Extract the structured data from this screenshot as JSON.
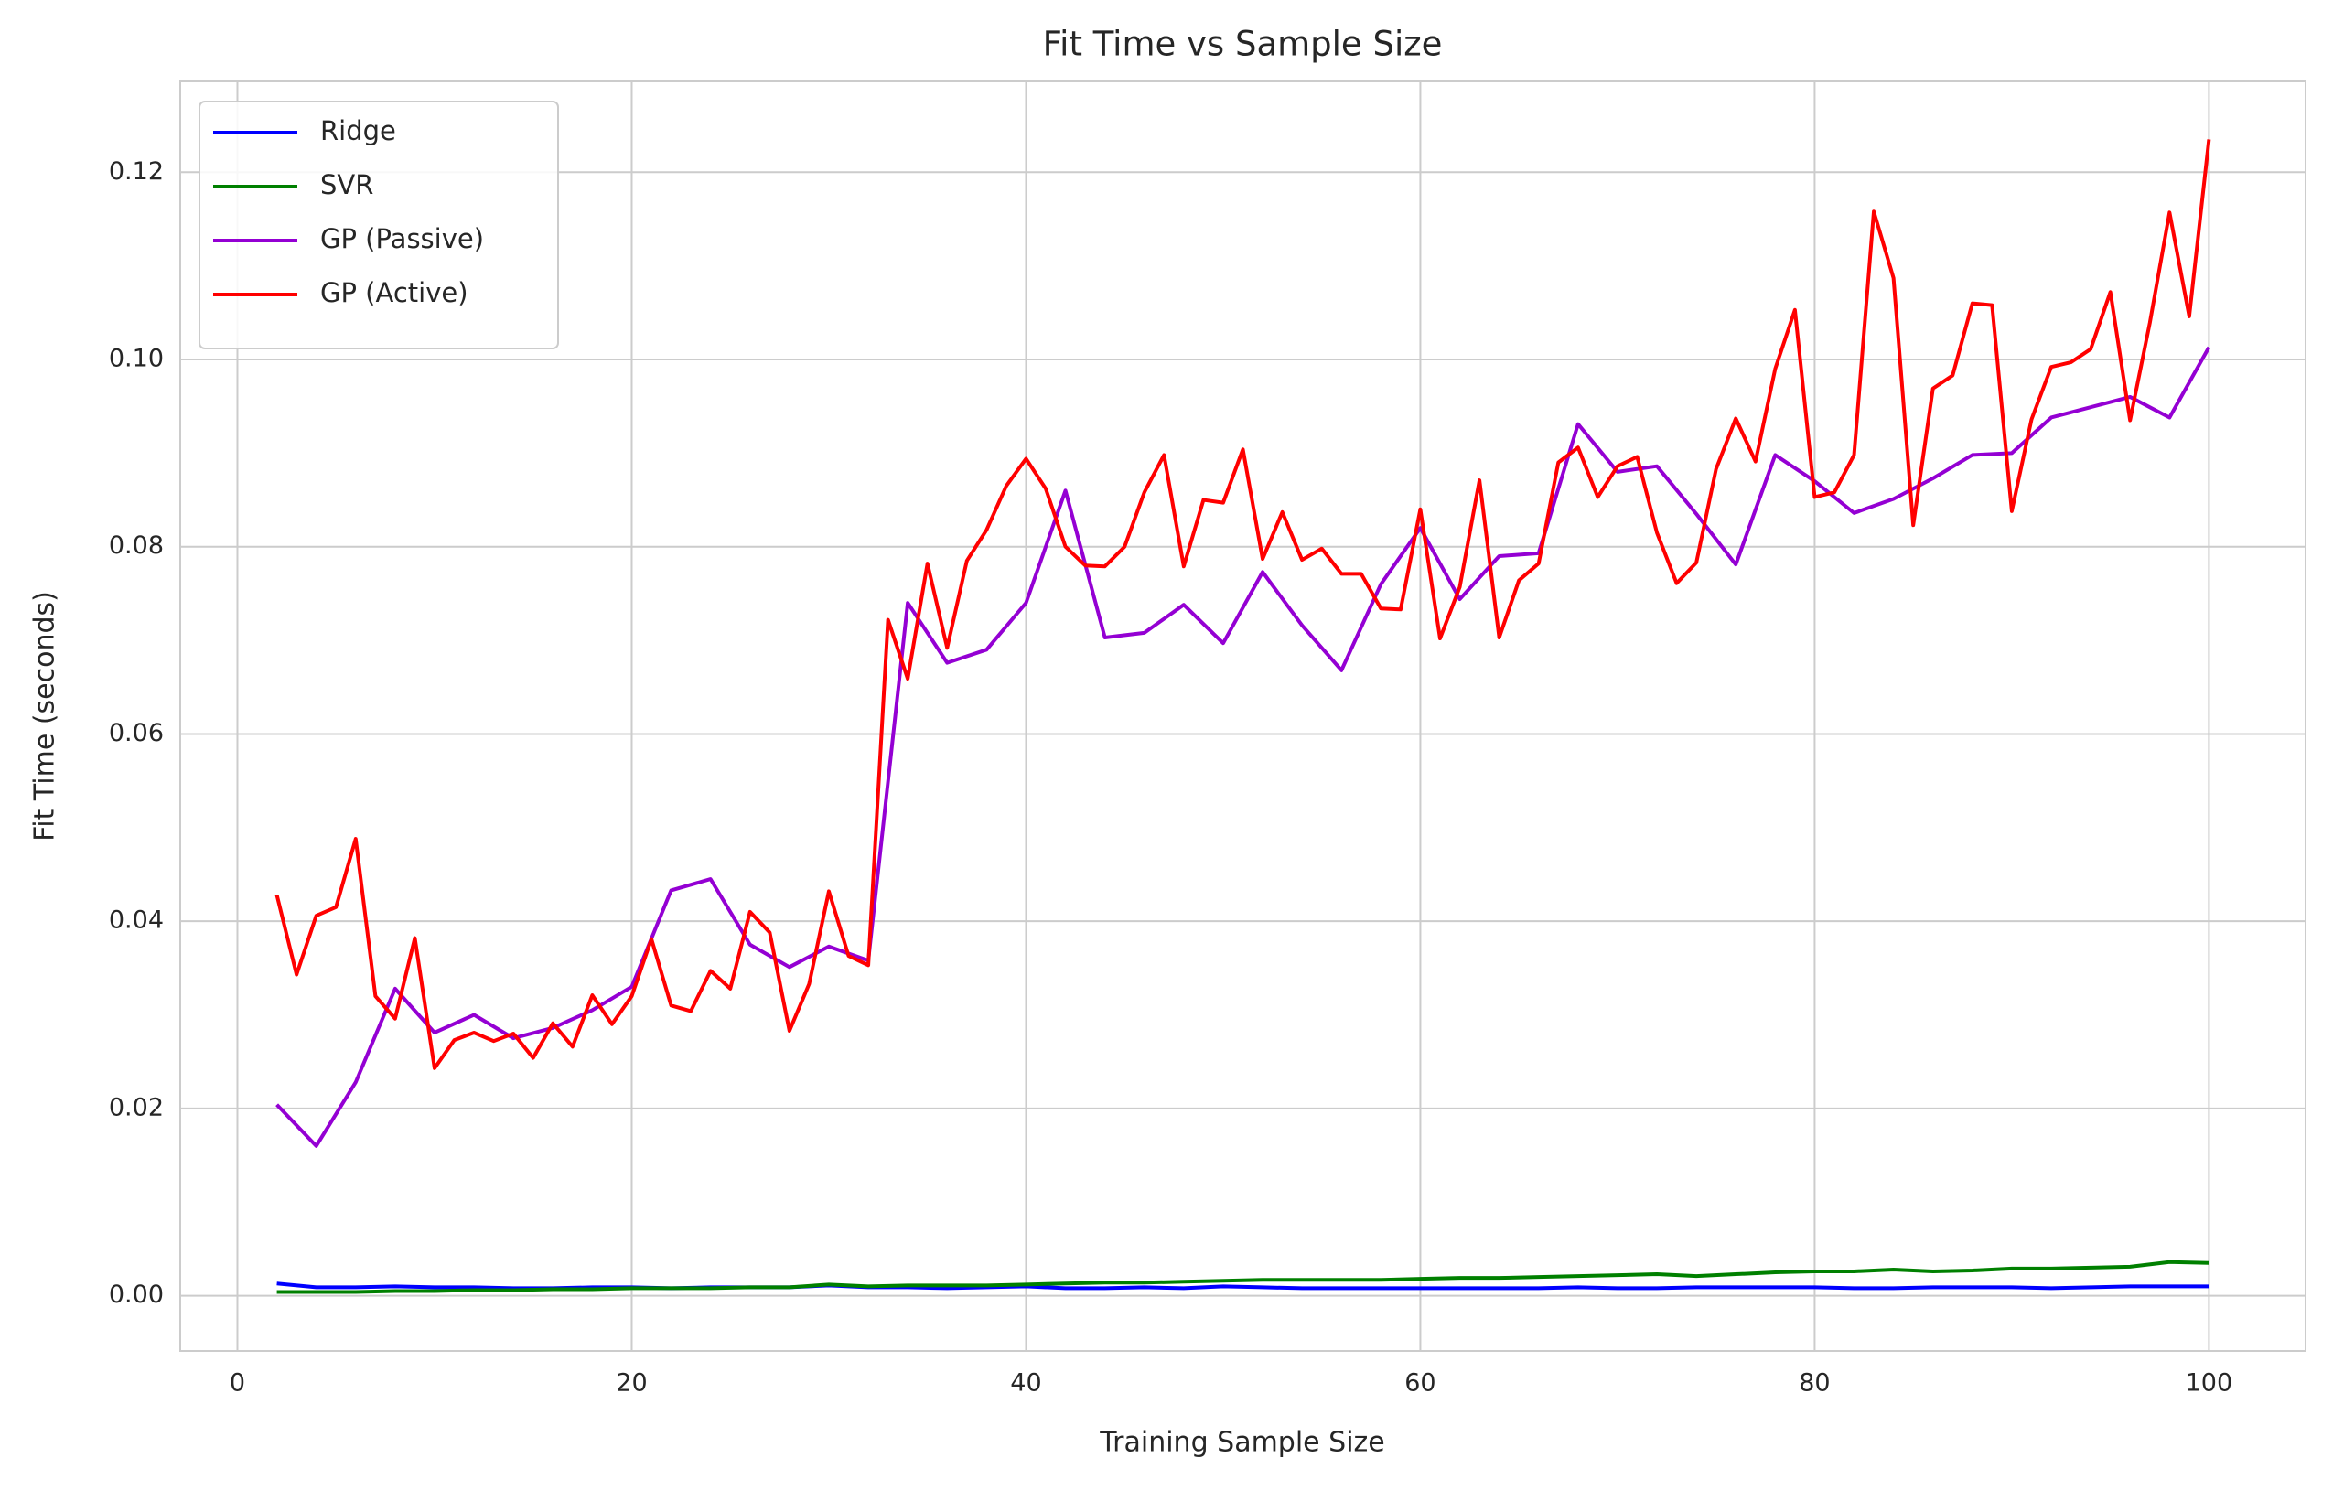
{
  "chart_data": {
    "type": "line",
    "title": "Fit Time vs Sample Size",
    "x_label": "Training Sample Size",
    "y_label": "Fit Time (seconds)",
    "xlim": [
      -2.9,
      104.9
    ],
    "ylim": [
      -0.0059,
      0.1297
    ],
    "xticks": [
      0,
      20,
      40,
      60,
      80,
      100
    ],
    "yticks": [
      {
        "value": 0,
        "label": "0.00"
      },
      {
        "value": 0.02,
        "label": "0.02"
      },
      {
        "value": 0.04,
        "label": "0.04"
      },
      {
        "value": 0.06,
        "label": "0.06"
      },
      {
        "value": 0.08,
        "label": "0.08"
      },
      {
        "value": 0.1,
        "label": "0.10"
      },
      {
        "value": 0.12,
        "label": "0.12"
      }
    ],
    "grid": true,
    "legend": "upper left",
    "series": [
      {
        "name": "Ridge",
        "color": "#0000ff",
        "x": [
          2,
          4,
          6,
          8,
          10,
          12,
          14,
          16,
          18,
          20,
          22,
          24,
          26,
          28,
          30,
          32,
          34,
          36,
          38,
          40,
          42,
          44,
          46,
          48,
          50,
          52,
          54,
          56,
          58,
          60,
          62,
          64,
          66,
          68,
          70,
          72,
          74,
          76,
          78,
          80,
          82,
          84,
          86,
          88,
          90,
          92,
          94,
          96,
          98,
          100
        ],
        "values": [
          0.0013,
          0.0009,
          0.0009,
          0.001,
          0.0009,
          0.0009,
          0.0008,
          0.0008,
          0.0009,
          0.0009,
          0.0008,
          0.0009,
          0.0009,
          0.0009,
          0.0011,
          0.0009,
          0.0009,
          0.0008,
          0.0009,
          0.001,
          0.0008,
          0.0008,
          0.0009,
          0.0008,
          0.001,
          0.0009,
          0.0008,
          0.0008,
          0.0008,
          0.0008,
          0.0008,
          0.0008,
          0.0008,
          0.0009,
          0.0008,
          0.0008,
          0.0009,
          0.0009,
          0.0009,
          0.0009,
          0.0008,
          0.0008,
          0.0009,
          0.0009,
          0.0009,
          0.0008,
          0.0009,
          0.001,
          0.001,
          0.001
        ]
      },
      {
        "name": "SVR",
        "color": "#008000",
        "x": [
          2,
          4,
          6,
          8,
          10,
          12,
          14,
          16,
          18,
          20,
          22,
          24,
          26,
          28,
          30,
          32,
          34,
          36,
          38,
          40,
          42,
          44,
          46,
          48,
          50,
          52,
          54,
          56,
          58,
          60,
          62,
          64,
          66,
          68,
          70,
          72,
          74,
          76,
          78,
          80,
          82,
          84,
          86,
          88,
          90,
          92,
          94,
          96,
          98,
          100
        ],
        "values": [
          0.0004,
          0.0004,
          0.0004,
          0.0005,
          0.0005,
          0.0006,
          0.0006,
          0.0007,
          0.0007,
          0.0008,
          0.0008,
          0.0008,
          0.0009,
          0.0009,
          0.0012,
          0.001,
          0.0011,
          0.0011,
          0.0011,
          0.0012,
          0.0013,
          0.0014,
          0.0014,
          0.0015,
          0.0016,
          0.0017,
          0.0017,
          0.0017,
          0.0017,
          0.0018,
          0.0019,
          0.0019,
          0.002,
          0.0021,
          0.0022,
          0.0023,
          0.0021,
          0.0023,
          0.0025,
          0.0026,
          0.0026,
          0.0028,
          0.0026,
          0.0027,
          0.0029,
          0.0029,
          0.003,
          0.0031,
          0.0036,
          0.0035
        ]
      },
      {
        "name": "GP (Passive)",
        "color": "#9400d3",
        "x": [
          2,
          4,
          6,
          8,
          10,
          12,
          14,
          16,
          18,
          20,
          22,
          24,
          26,
          28,
          30,
          32,
          34,
          36,
          38,
          40,
          42,
          44,
          46,
          48,
          50,
          52,
          54,
          56,
          58,
          60,
          62,
          64,
          66,
          68,
          70,
          72,
          74,
          76,
          78,
          80,
          82,
          84,
          86,
          88,
          90,
          92,
          94,
          96,
          98,
          100
        ],
        "values": [
          0.0204,
          0.016,
          0.0228,
          0.0328,
          0.0281,
          0.03,
          0.0275,
          0.0286,
          0.0305,
          0.033,
          0.0433,
          0.0445,
          0.0375,
          0.0351,
          0.0373,
          0.0358,
          0.074,
          0.0676,
          0.069,
          0.074,
          0.086,
          0.0703,
          0.0708,
          0.0738,
          0.0697,
          0.0773,
          0.0716,
          0.0668,
          0.076,
          0.082,
          0.0744,
          0.079,
          0.0793,
          0.0931,
          0.088,
          0.0886,
          0.0835,
          0.0781,
          0.0898,
          0.087,
          0.0836,
          0.0851,
          0.0873,
          0.0898,
          0.09,
          0.0938,
          0.0949,
          0.096,
          0.0938,
          0.1013
        ]
      },
      {
        "name": "GP (Active)",
        "color": "#ff0000",
        "x": [
          2,
          3,
          4,
          5,
          6,
          7,
          8,
          9,
          10,
          11,
          12,
          13,
          14,
          15,
          16,
          17,
          18,
          19,
          20,
          21,
          22,
          23,
          24,
          25,
          26,
          27,
          28,
          29,
          30,
          31,
          32,
          33,
          34,
          35,
          36,
          37,
          38,
          39,
          40,
          41,
          42,
          43,
          44,
          45,
          46,
          47,
          48,
          49,
          50,
          51,
          52,
          53,
          54,
          55,
          56,
          57,
          58,
          59,
          60,
          61,
          62,
          63,
          64,
          65,
          66,
          67,
          68,
          69,
          70,
          71,
          72,
          73,
          74,
          75,
          76,
          77,
          78,
          79,
          80,
          81,
          82,
          83,
          84,
          85,
          86,
          87,
          88,
          89,
          90,
          91,
          92,
          93,
          94,
          95,
          96,
          97,
          98,
          99,
          100
        ],
        "values": [
          0.0428,
          0.0343,
          0.0406,
          0.0415,
          0.0488,
          0.032,
          0.0296,
          0.0382,
          0.0243,
          0.0273,
          0.0281,
          0.0272,
          0.028,
          0.0254,
          0.0291,
          0.0266,
          0.0321,
          0.029,
          0.032,
          0.0381,
          0.031,
          0.0304,
          0.0347,
          0.0328,
          0.041,
          0.0388,
          0.0283,
          0.0333,
          0.0432,
          0.0363,
          0.0353,
          0.0722,
          0.0659,
          0.0782,
          0.0692,
          0.0785,
          0.0818,
          0.0865,
          0.0894,
          0.0862,
          0.08,
          0.078,
          0.0779,
          0.08,
          0.0858,
          0.0898,
          0.0779,
          0.085,
          0.0847,
          0.0904,
          0.0787,
          0.0837,
          0.0786,
          0.0798,
          0.0771,
          0.0771,
          0.0734,
          0.0733,
          0.084,
          0.0702,
          0.0757,
          0.0871,
          0.0703,
          0.0764,
          0.0782,
          0.089,
          0.0906,
          0.0853,
          0.0886,
          0.0896,
          0.0815,
          0.0761,
          0.0783,
          0.0883,
          0.0937,
          0.0891,
          0.099,
          0.1053,
          0.0853,
          0.0858,
          0.0898,
          0.1158,
          0.1087,
          0.0823,
          0.0969,
          0.0983,
          0.106,
          0.1058,
          0.0838,
          0.0936,
          0.0992,
          0.0997,
          0.1011,
          0.1072,
          0.0935,
          0.1039,
          0.1157,
          0.1046,
          0.1235
        ]
      }
    ]
  }
}
